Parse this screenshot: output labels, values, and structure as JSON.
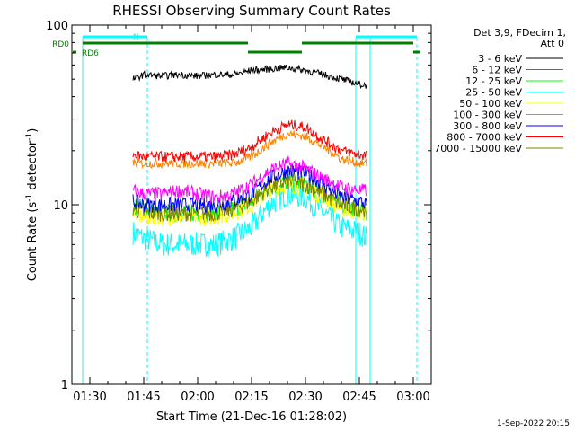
{
  "chart_data": {
    "type": "line",
    "title": "RHESSI Observing Summary Count Rates",
    "xlabel": "Start Time (21-Dec-16 01:28:02)",
    "ylabel_main": "Count Rate (s",
    "ylabel_sup1": "-1",
    "ylabel_mid": " detector",
    "ylabel_sup2": "-1",
    "ylabel_end": ")",
    "yscale": "log",
    "ylim": [
      1,
      100
    ],
    "xlim": [
      "01:25",
      "03:05"
    ],
    "x_ticks": [
      "01:30",
      "01:45",
      "02:00",
      "02:15",
      "02:30",
      "02:45",
      "03:00"
    ],
    "y_ticks": [
      "1",
      "10",
      "100"
    ],
    "legend_header": [
      "Det 3,9, FDecim 1,",
      "Att 0"
    ],
    "legend_position": "right",
    "series": [
      {
        "name": "3 - 6 keV",
        "color": "#000000",
        "x": [
          "01:42",
          "01:45",
          "01:50",
          "01:55",
          "02:00",
          "02:05",
          "02:10",
          "02:15",
          "02:20",
          "02:25",
          "02:30",
          "02:35",
          "02:40",
          "02:45",
          "02:47"
        ],
        "y": [
          50,
          53,
          52,
          53,
          52,
          53,
          53,
          56,
          57,
          58,
          56,
          53,
          50,
          47,
          46
        ]
      },
      {
        "name": "6 - 12 keV",
        "color": "#ff00ff",
        "x": [
          "01:42",
          "01:45",
          "01:50",
          "01:55",
          "02:00",
          "02:05",
          "02:10",
          "02:15",
          "02:20",
          "02:25",
          "02:30",
          "02:35",
          "02:40",
          "02:45",
          "02:47"
        ],
        "y": [
          12,
          11.5,
          11.5,
          12,
          11.5,
          11,
          11.5,
          13,
          15.5,
          17,
          16,
          14,
          12.5,
          12,
          12
        ]
      },
      {
        "name": "12 - 25 keV",
        "color": "#00ff00",
        "x": [
          "01:42",
          "01:45",
          "01:50",
          "01:55",
          "02:00",
          "02:05",
          "02:10",
          "02:15",
          "02:20",
          "02:25",
          "02:30",
          "02:35",
          "02:40",
          "02:45",
          "02:47"
        ],
        "y": [
          10,
          9.5,
          9,
          9,
          9,
          9,
          9.5,
          10.5,
          12.5,
          13.5,
          13,
          11.5,
          10,
          9.5,
          9
        ]
      },
      {
        "name": "25 - 50 keV",
        "color": "#00ffff",
        "x": [
          "01:42",
          "01:45",
          "01:50",
          "01:55",
          "02:00",
          "02:05",
          "02:10",
          "02:15",
          "02:20",
          "02:25",
          "02:30",
          "02:35",
          "02:40",
          "02:45",
          "02:47"
        ],
        "y": [
          7,
          6.5,
          6,
          6,
          6,
          6,
          6.5,
          7.5,
          10,
          11.5,
          11,
          9,
          7.5,
          7,
          6.5
        ]
      },
      {
        "name": "50 - 100 keV",
        "color": "#ffff00",
        "x": [
          "01:42",
          "01:45",
          "01:50",
          "01:55",
          "02:00",
          "02:05",
          "02:10",
          "02:15",
          "02:20",
          "02:25",
          "02:30",
          "02:35",
          "02:40",
          "02:45",
          "02:47"
        ],
        "y": [
          9,
          8.5,
          8.5,
          8.5,
          8.5,
          8.5,
          9,
          10,
          12,
          13,
          12.5,
          11,
          9.5,
          9,
          9
        ]
      },
      {
        "name": "100 - 300 keV",
        "color": "#ff8000",
        "x": [
          "01:42",
          "01:45",
          "01:50",
          "01:55",
          "02:00",
          "02:05",
          "02:10",
          "02:15",
          "02:20",
          "02:25",
          "02:30",
          "02:35",
          "02:40",
          "02:45",
          "02:47"
        ],
        "y": [
          17,
          17,
          17,
          17,
          17,
          17,
          17,
          18.5,
          22,
          25,
          24,
          21,
          18,
          17,
          17
        ]
      },
      {
        "name": "300 - 800 keV",
        "color": "#0000ff",
        "x": [
          "01:42",
          "01:45",
          "01:50",
          "01:55",
          "02:00",
          "02:05",
          "02:10",
          "02:15",
          "02:20",
          "02:25",
          "02:30",
          "02:35",
          "02:40",
          "02:45",
          "02:47"
        ],
        "y": [
          10.5,
          10,
          10,
          10,
          10,
          10,
          10.5,
          11.5,
          14,
          15.5,
          15,
          13,
          11,
          10.5,
          10
        ]
      },
      {
        "name": "800 - 7000 keV",
        "color": "#ff0000",
        "x": [
          "01:42",
          "01:45",
          "01:50",
          "01:55",
          "02:00",
          "02:05",
          "02:10",
          "02:15",
          "02:20",
          "02:25",
          "02:30",
          "02:35",
          "02:40",
          "02:45",
          "02:47"
        ],
        "y": [
          19,
          18.5,
          18.5,
          18.5,
          18.5,
          18.5,
          19,
          21,
          25,
          28,
          27,
          23,
          20,
          19,
          19
        ]
      },
      {
        "name": "7000 - 15000 keV",
        "color": "#808000",
        "x": [
          "01:42",
          "01:45",
          "01:50",
          "01:55",
          "02:00",
          "02:05",
          "02:10",
          "02:15",
          "02:20",
          "02:25",
          "02:30",
          "02:35",
          "02:40",
          "02:45",
          "02:47"
        ],
        "y": [
          9.5,
          9,
          9,
          9,
          9,
          9,
          9.5,
          10.5,
          12.5,
          13.5,
          13,
          11.5,
          10,
          9.5,
          9.5
        ]
      }
    ],
    "flags": [
      {
        "name": "N",
        "color": "#00ffff"
      },
      {
        "name": "RD0",
        "color": "#008000"
      },
      {
        "name": "RD6",
        "color": "#008000"
      }
    ],
    "vertical_lines": [
      {
        "x": "01:28",
        "style": "solid",
        "color": "#00ffff"
      },
      {
        "x": "01:46",
        "style": "dashed",
        "color": "#00ffff"
      },
      {
        "x": "02:44",
        "style": "solid",
        "color": "#00ffff"
      },
      {
        "x": "02:48",
        "style": "solid",
        "color": "#00ffff"
      },
      {
        "x": "03:01",
        "style": "dashed",
        "color": "#00ffff"
      }
    ],
    "grid": false
  },
  "footer": {
    "timestamp": "1-Sep-2022 20:15"
  }
}
